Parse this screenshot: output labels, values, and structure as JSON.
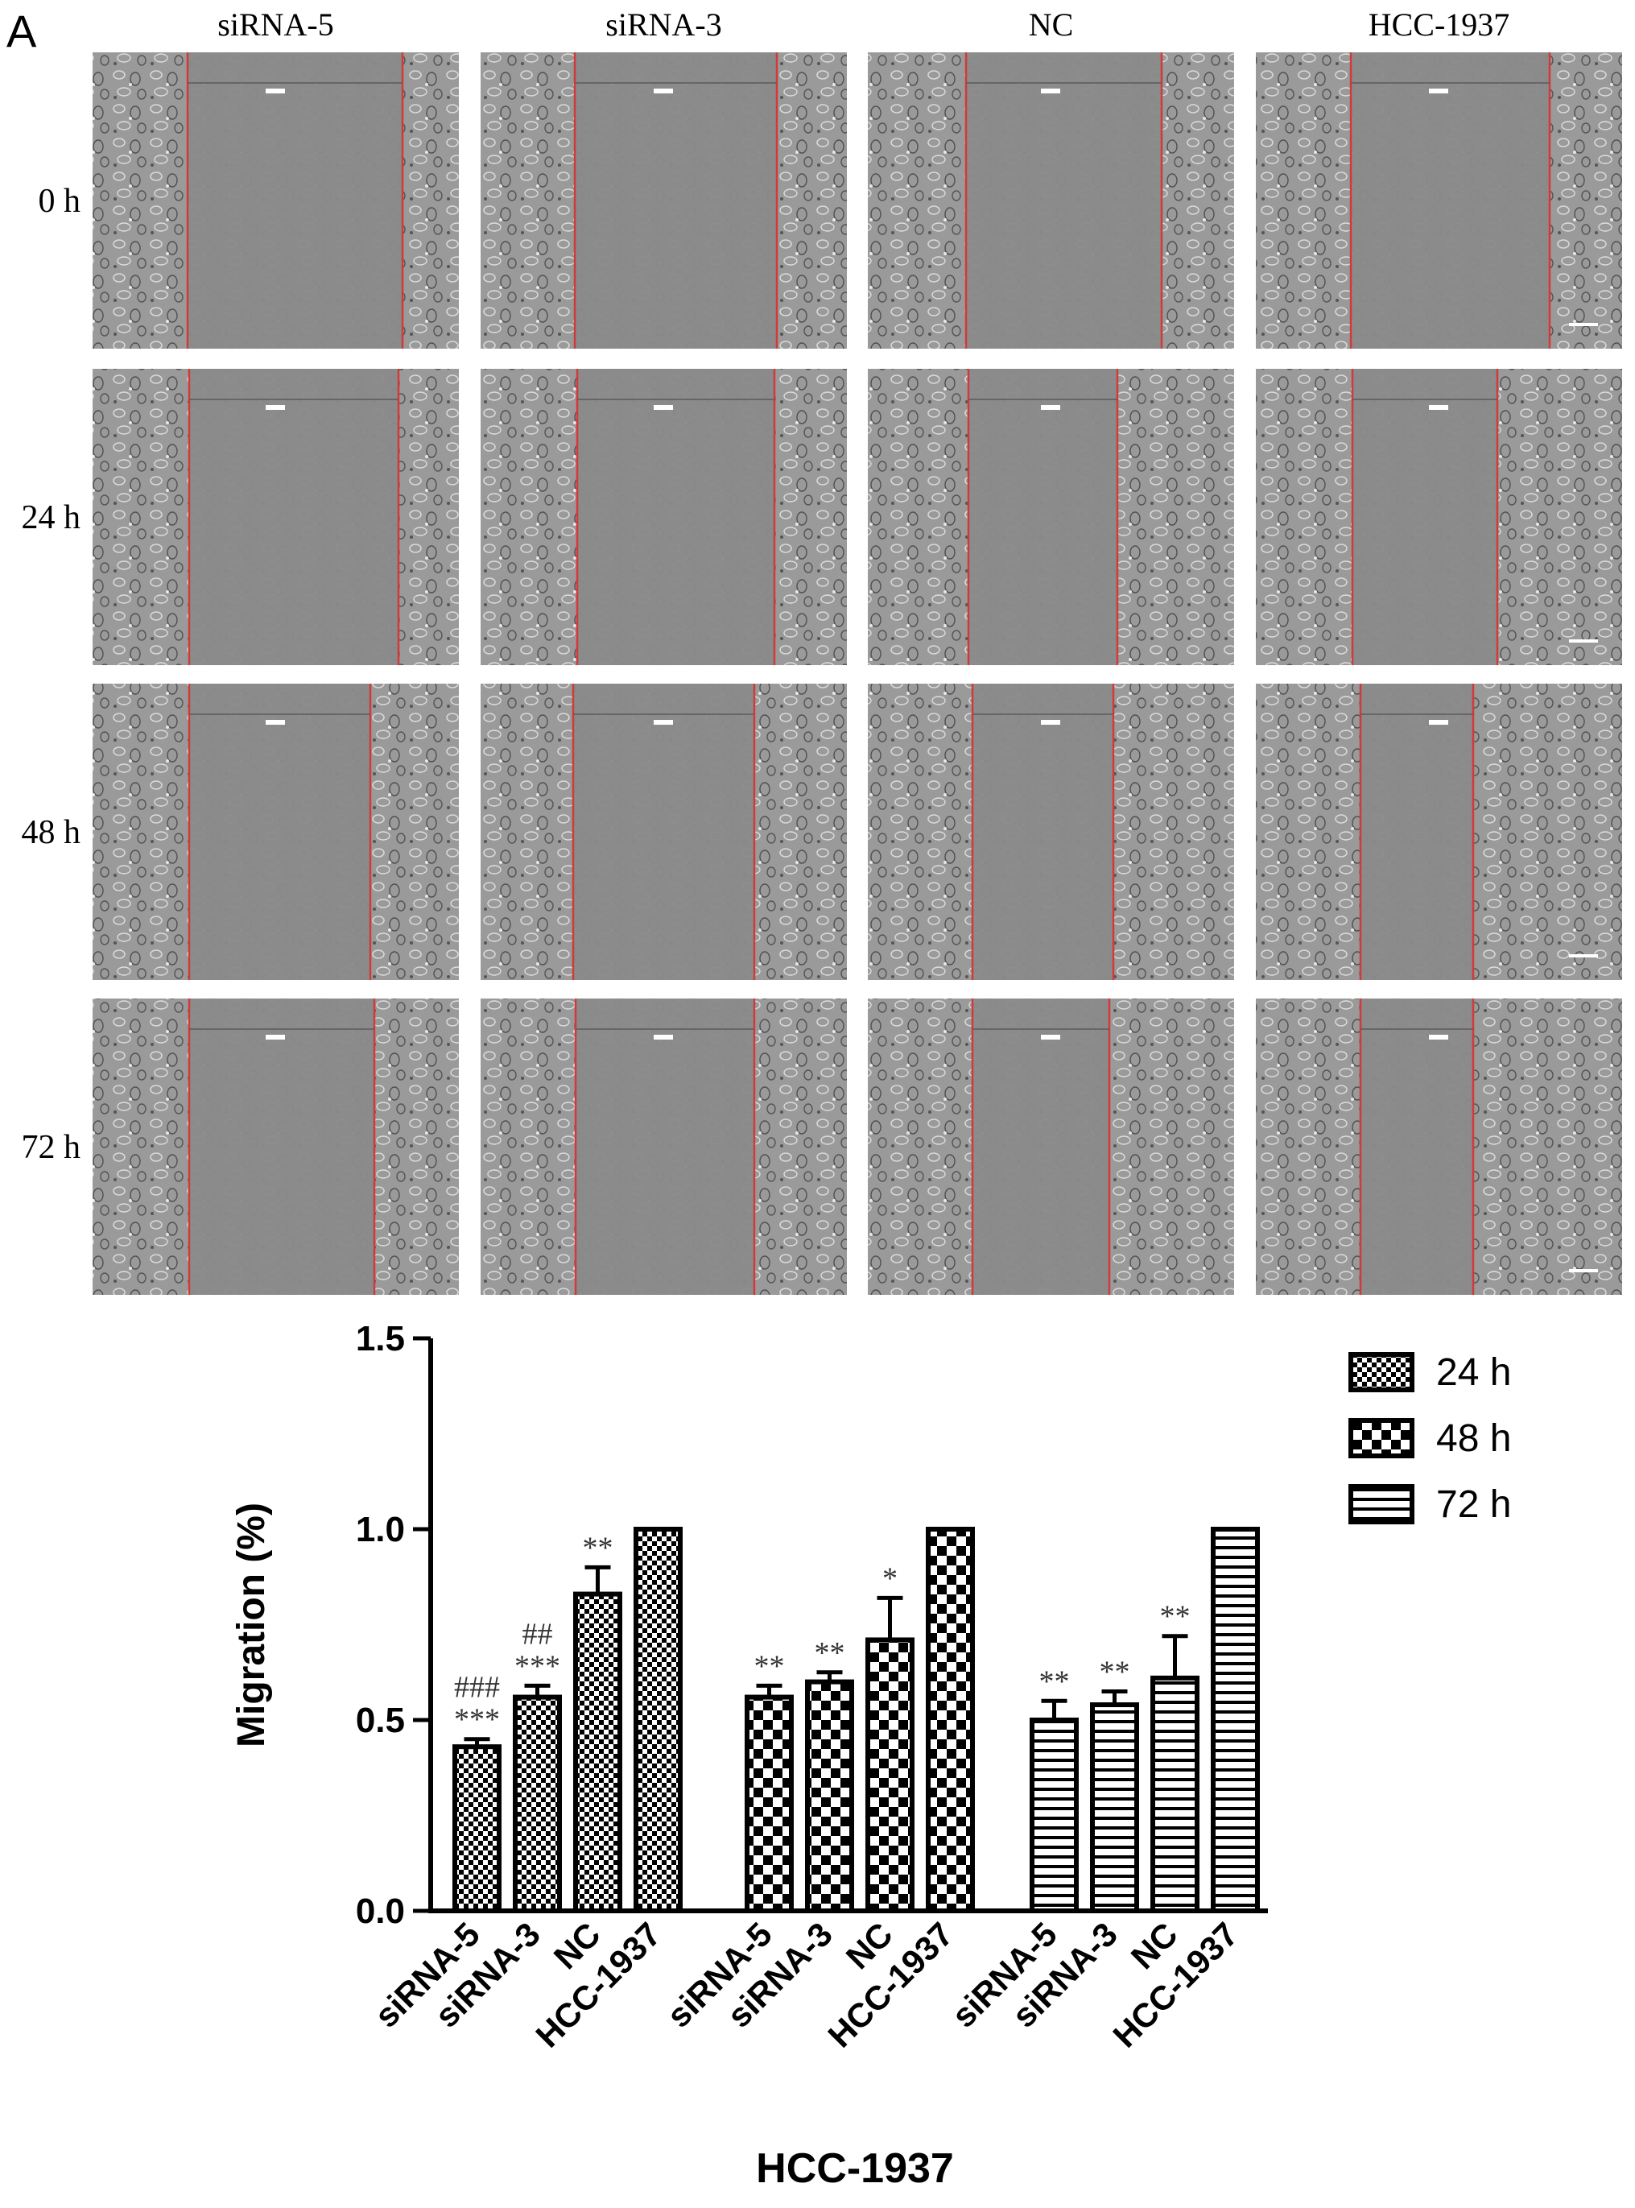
{
  "panel_label": "A",
  "micrographs": {
    "columns": [
      "siRNA-5",
      "siRNA-3",
      "NC",
      "HCC-1937"
    ],
    "rows": [
      "0 h",
      "24 h",
      "48 h",
      "72 h"
    ]
  },
  "chart_data": {
    "type": "bar",
    "title": "",
    "xlabel": "HCC-1937",
    "ylabel": "Migration (%)",
    "ylim": [
      0,
      1.5
    ],
    "yticks": [
      "0.0",
      "0.5",
      "1.0",
      "1.5"
    ],
    "categories": [
      "siRNA-5",
      "siRNA-3",
      "NC",
      "HCC-1937"
    ],
    "legend_position": "top-right",
    "series": [
      {
        "name": "24 h",
        "pattern": "fine-checker",
        "values": [
          0.43,
          0.56,
          0.83,
          1.0
        ],
        "errors": [
          0.02,
          0.03,
          0.07,
          0.0
        ],
        "annotations": [
          [
            "###",
            "***"
          ],
          [
            "##",
            "***"
          ],
          [
            "**"
          ],
          []
        ]
      },
      {
        "name": "48 h",
        "pattern": "coarse-checker",
        "values": [
          0.56,
          0.6,
          0.71,
          1.0
        ],
        "errors": [
          0.03,
          0.025,
          0.11,
          0.0
        ],
        "annotations": [
          [
            "**"
          ],
          [
            "**"
          ],
          [
            "*"
          ],
          []
        ]
      },
      {
        "name": "72 h",
        "pattern": "horizontal-stripes",
        "values": [
          0.5,
          0.54,
          0.61,
          1.0
        ],
        "errors": [
          0.05,
          0.035,
          0.11,
          0.0
        ],
        "annotations": [
          [
            "**"
          ],
          [
            "**"
          ],
          [
            "**"
          ],
          []
        ]
      }
    ]
  }
}
